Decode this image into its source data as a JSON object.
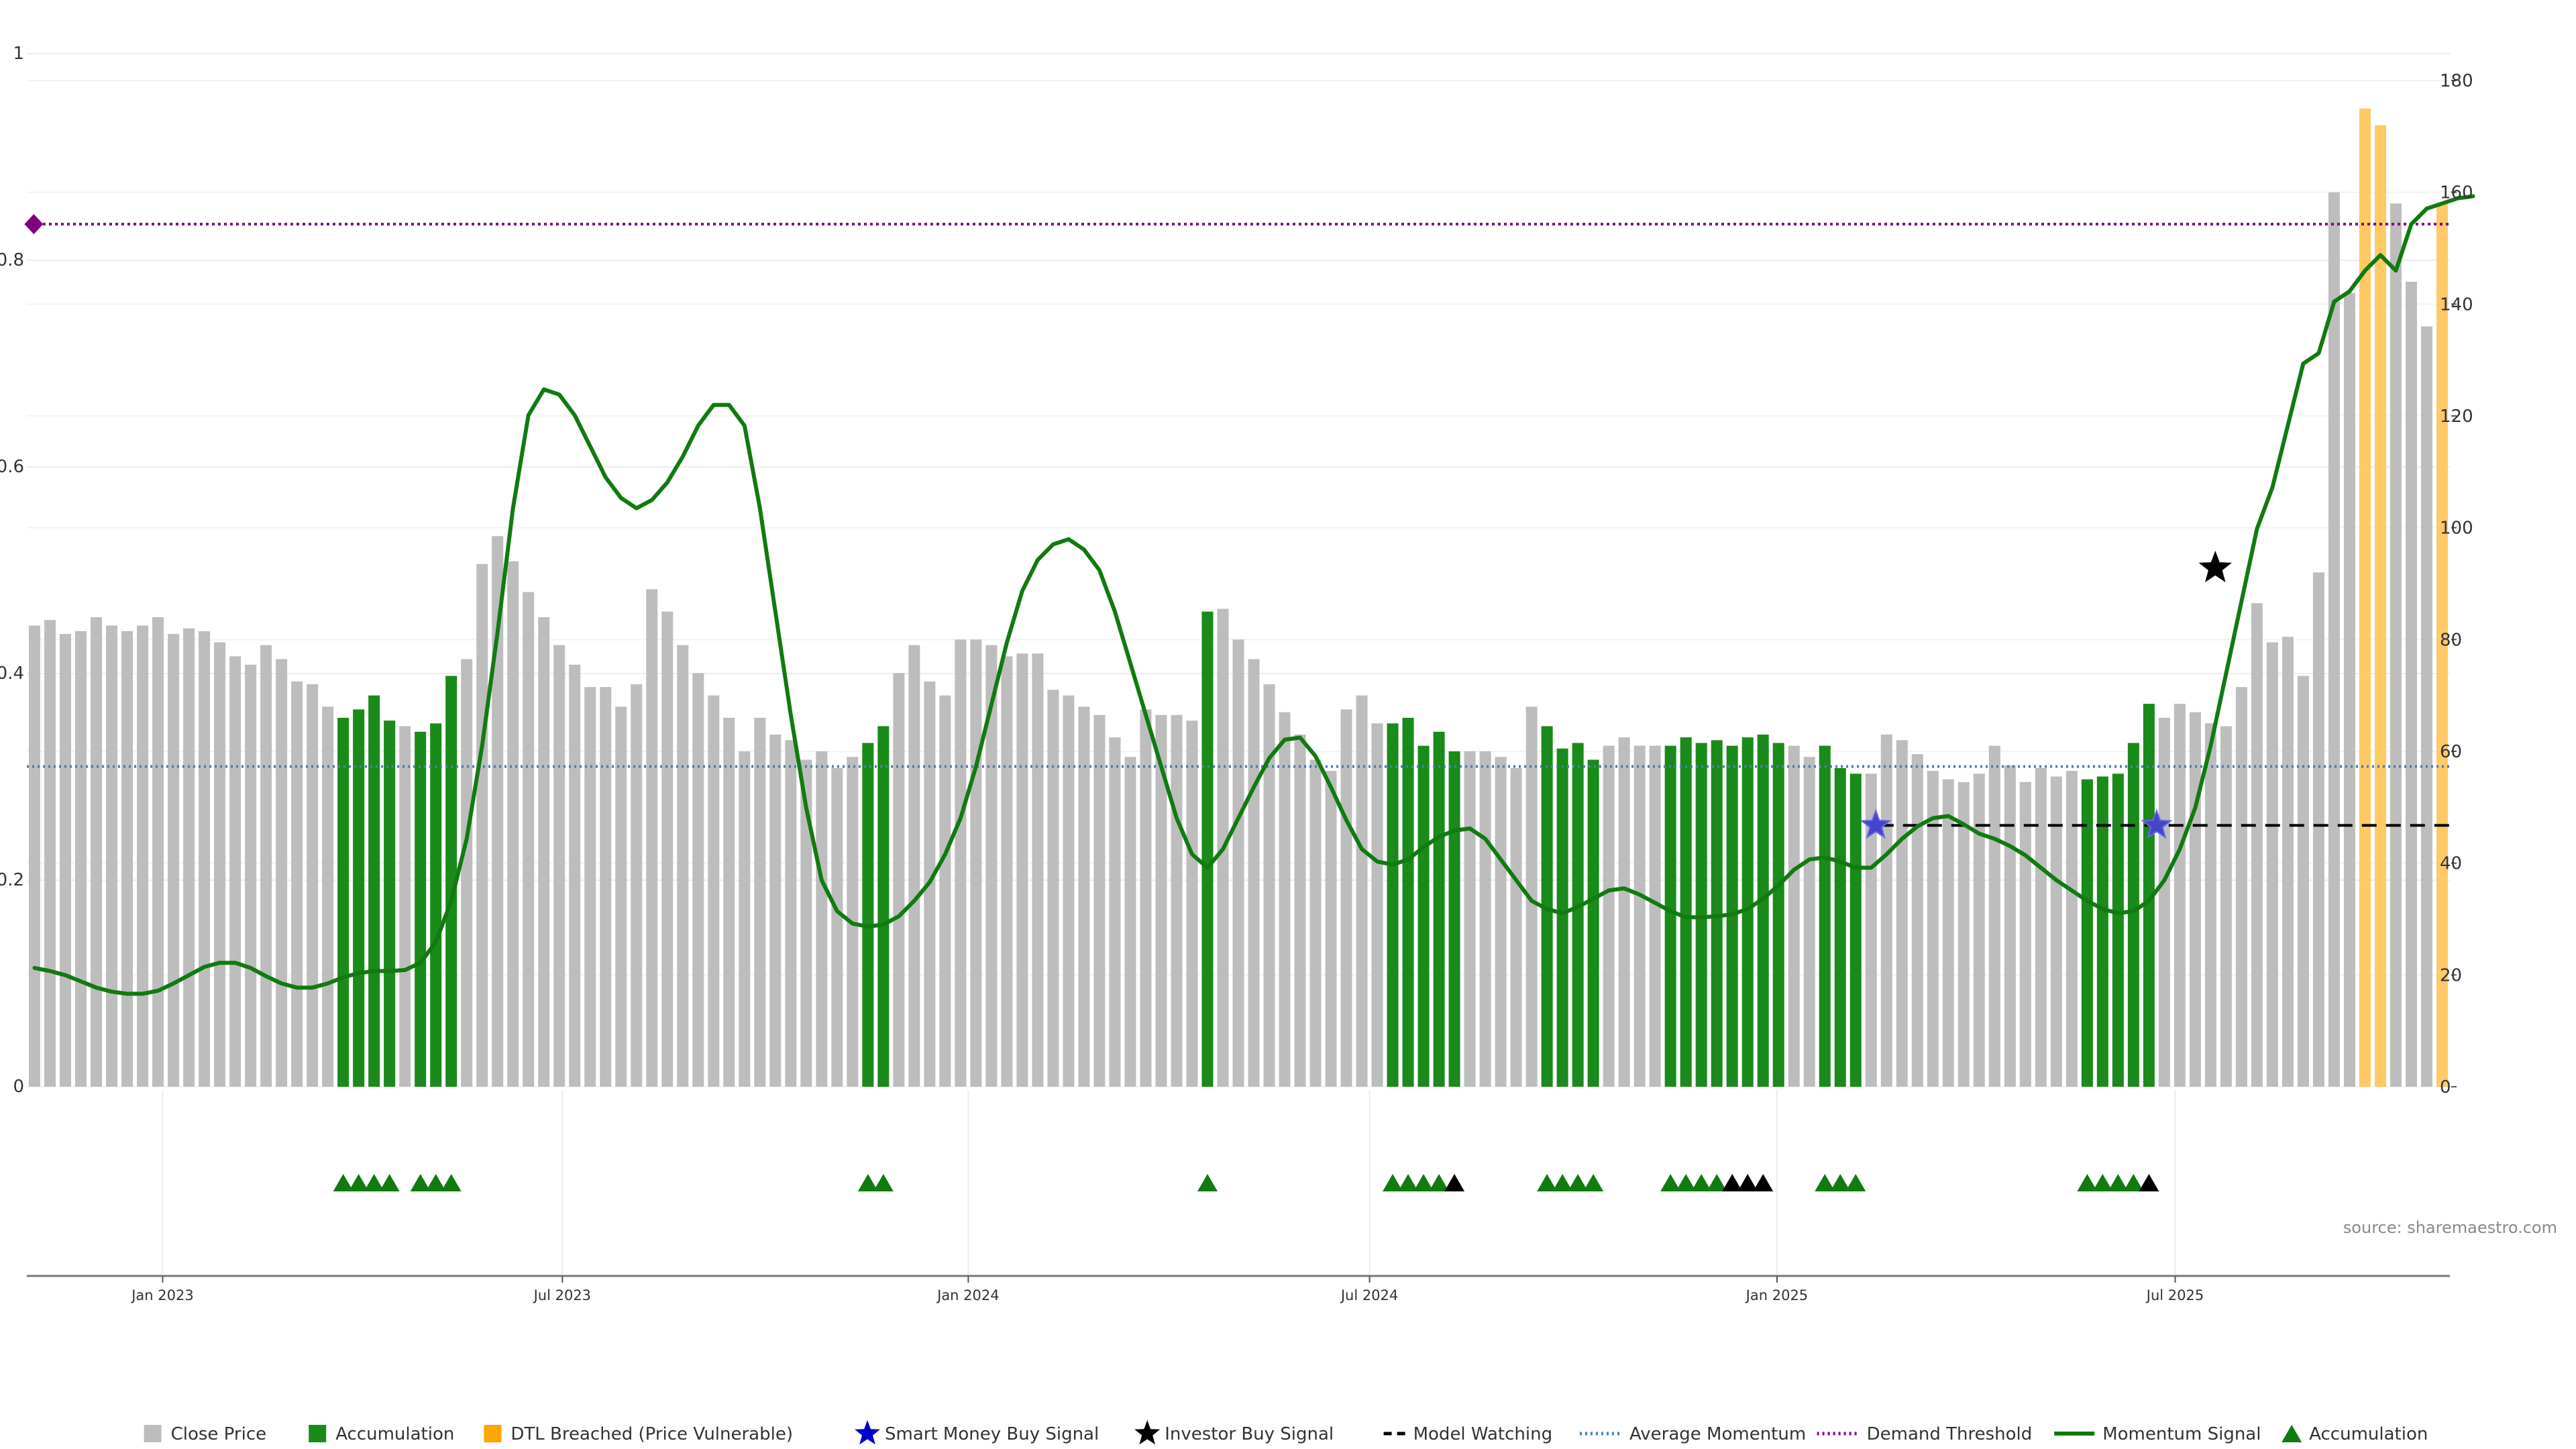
{
  "chart_data": {
    "type": "bar",
    "source": "source: sharemaestro.com",
    "left_axis": {
      "ylim": [
        0,
        1
      ],
      "ticks": [
        {
          "v": 0,
          "label": "0"
        },
        {
          "v": 0.2,
          "label": "0.2"
        },
        {
          "v": 0.4,
          "label": "0.4"
        },
        {
          "v": 0.6,
          "label": "0.6"
        },
        {
          "v": 0.8,
          "label": "0.8"
        },
        {
          "v": 1,
          "label": "1"
        }
      ]
    },
    "right_axis": {
      "ylim": [
        0,
        180
      ],
      "ticks": [
        0,
        20,
        40,
        60,
        80,
        100,
        120,
        140,
        160,
        180
      ]
    },
    "x_ticks": [
      {
        "label": "Jan 2023",
        "i": 8.3
      },
      {
        "label": "Jul 2023",
        "i": 34.2
      },
      {
        "label": "Jan 2024",
        "i": 60.5
      },
      {
        "label": "Jul 2024",
        "i": 86.5
      },
      {
        "label": "Jan 2025",
        "i": 112.9
      },
      {
        "label": "Jul 2025",
        "i": 138.7
      }
    ],
    "legend": [
      {
        "label": "Close Price",
        "kind": "square",
        "color": "#bdbdbd"
      },
      {
        "label": "Accumulation",
        "kind": "square",
        "color": "#1a8a1a"
      },
      {
        "label": "DTL Breached (Price Vulnerable)",
        "kind": "square",
        "color": "#ffa500"
      },
      {
        "label": "Smart Money Buy Signal",
        "kind": "star",
        "color": "#0000cc"
      },
      {
        "label": "Investor Buy Signal",
        "kind": "star",
        "color": "#000000"
      },
      {
        "label": "Model Watching",
        "kind": "dash",
        "color": "#000000"
      },
      {
        "label": "Average Momentum",
        "kind": "dot",
        "color": "#4a7fb0"
      },
      {
        "label": "Demand Threshold",
        "kind": "dotpurple",
        "color": "#800080"
      },
      {
        "label": "Momentum Signal",
        "kind": "line",
        "color": "#117a11"
      },
      {
        "label": "Accumulation",
        "kind": "triangle",
        "color": "#117a11"
      }
    ],
    "colors": {
      "close": "#bdbdbd",
      "accumulation": "#1a8a1a",
      "dtl": "#ffc966",
      "momentum": "#117a11",
      "avg_momentum": "#4a7fb0",
      "demand": "#800080",
      "watching": "#000000"
    },
    "close_price": [
      82.5,
      83.5,
      81.0,
      81.5,
      84.0,
      82.5,
      81.5,
      82.5,
      84.0,
      81.0,
      82.0,
      81.5,
      79.5,
      77.0,
      75.5,
      79.0,
      76.5,
      72.5,
      72.0,
      68.0,
      66.0,
      67.5,
      70.0,
      65.5,
      64.5,
      63.5,
      65.0,
      73.5,
      76.5,
      93.5,
      98.5,
      94.0,
      88.5,
      84.0,
      79.0,
      75.5,
      71.5,
      71.5,
      68.0,
      72.0,
      89.0,
      85.0,
      79.0,
      74.0,
      70.0,
      66.0,
      60.0,
      66.0,
      63.0,
      62.0,
      58.5,
      60.0,
      57.0,
      59.0,
      61.5,
      64.5,
      74.0,
      79.0,
      72.5,
      70.0,
      80.0,
      80.0,
      79.0,
      77.0,
      77.5,
      77.5,
      71.0,
      70.0,
      68.0,
      66.5,
      62.5,
      59.0,
      67.5,
      66.5,
      66.5,
      65.5,
      85.0,
      85.5,
      80.0,
      76.5,
      72.0,
      67.0,
      63.0,
      58.5,
      56.5,
      67.5,
      70.0,
      65.0,
      65.0,
      66.0,
      61.0,
      63.5,
      60.0,
      60.0,
      60.0,
      59.0,
      57.0,
      68.0,
      64.5,
      60.5,
      61.5,
      58.5,
      61.0,
      62.5,
      61.0,
      61.0,
      61.0,
      62.5,
      61.5,
      62.0,
      61.0,
      62.5,
      63.0,
      61.5,
      61.0,
      59.0,
      61.0,
      57.0,
      56.0,
      56.0,
      63.0,
      62.0,
      59.5,
      56.5,
      55.0,
      54.5,
      56.0,
      61.0,
      57.5,
      54.5,
      57.0,
      55.5,
      56.5,
      55.0,
      55.5,
      56.0,
      61.5,
      68.5,
      66.0,
      68.5,
      67.0,
      65.0,
      64.5,
      71.5,
      86.5,
      79.5,
      80.5,
      73.5,
      92.0,
      160.0,
      142.0,
      175.0,
      172.0,
      158.0,
      144.0,
      136.0,
      158.0
    ],
    "accumulation_idx": [
      20,
      21,
      22,
      23,
      25,
      26,
      27,
      54,
      55,
      76,
      88,
      89,
      90,
      91,
      92,
      98,
      99,
      100,
      101,
      106,
      107,
      108,
      109,
      110,
      111,
      112,
      113,
      116,
      117,
      118,
      133,
      134,
      135,
      136,
      137
    ],
    "dtl_idx": [
      151,
      152,
      156
    ],
    "momentum": [
      0.115,
      0.112,
      0.108,
      0.102,
      0.096,
      0.092,
      0.09,
      0.09,
      0.093,
      0.1,
      0.108,
      0.116,
      0.12,
      0.12,
      0.115,
      0.107,
      0.1,
      0.096,
      0.096,
      0.1,
      0.106,
      0.11,
      0.112,
      0.112,
      0.113,
      0.12,
      0.14,
      0.18,
      0.24,
      0.33,
      0.44,
      0.56,
      0.65,
      0.675,
      0.67,
      0.65,
      0.62,
      0.59,
      0.57,
      0.56,
      0.568,
      0.585,
      0.61,
      0.64,
      0.66,
      0.66,
      0.64,
      0.56,
      0.46,
      0.36,
      0.27,
      0.2,
      0.17,
      0.158,
      0.155,
      0.157,
      0.165,
      0.18,
      0.198,
      0.225,
      0.26,
      0.31,
      0.37,
      0.43,
      0.48,
      0.51,
      0.525,
      0.53,
      0.52,
      0.5,
      0.46,
      0.41,
      0.36,
      0.31,
      0.26,
      0.225,
      0.212,
      0.23,
      0.26,
      0.29,
      0.318,
      0.336,
      0.338,
      0.32,
      0.29,
      0.258,
      0.23,
      0.218,
      0.215,
      0.22,
      0.232,
      0.242,
      0.248,
      0.25,
      0.24,
      0.22,
      0.2,
      0.18,
      0.172,
      0.168,
      0.174,
      0.182,
      0.19,
      0.192,
      0.186,
      0.178,
      0.17,
      0.164,
      0.164,
      0.165,
      0.167,
      0.172,
      0.182,
      0.195,
      0.21,
      0.22,
      0.222,
      0.218,
      0.212,
      0.212,
      0.225,
      0.24,
      0.252,
      0.26,
      0.262,
      0.254,
      0.245,
      0.24,
      0.233,
      0.224,
      0.212,
      0.2,
      0.19,
      0.18,
      0.172,
      0.168,
      0.17,
      0.18,
      0.2,
      0.23,
      0.27,
      0.33,
      0.4,
      0.47,
      0.54,
      0.58,
      0.64,
      0.7,
      0.71,
      0.76,
      0.77,
      0.79,
      0.805,
      0.79,
      0.835,
      0.85,
      0.855,
      0.86,
      0.862
    ],
    "average_momentum": 0.31,
    "demand_threshold": 0.835,
    "model_watching": {
      "y": 0.253,
      "from_i": 119.5,
      "to_i": 157
    },
    "smart_money_signals": [
      {
        "i": 119.3,
        "y": 0.253
      },
      {
        "i": 137.5,
        "y": 0.253
      }
    ],
    "investor_signals": [
      {
        "i": 141.3,
        "y": 0.502
      }
    ],
    "demand_marker": {
      "i": 0.3,
      "y": 0.835
    },
    "triangles_green": [
      20,
      21,
      22,
      23,
      25,
      26,
      27,
      54,
      55,
      76,
      88,
      89,
      90,
      91,
      98,
      99,
      100,
      101,
      106,
      107,
      108,
      109,
      116,
      117,
      118,
      133,
      134,
      135,
      136
    ],
    "triangles_black": [
      92,
      110,
      111,
      112,
      137
    ]
  }
}
